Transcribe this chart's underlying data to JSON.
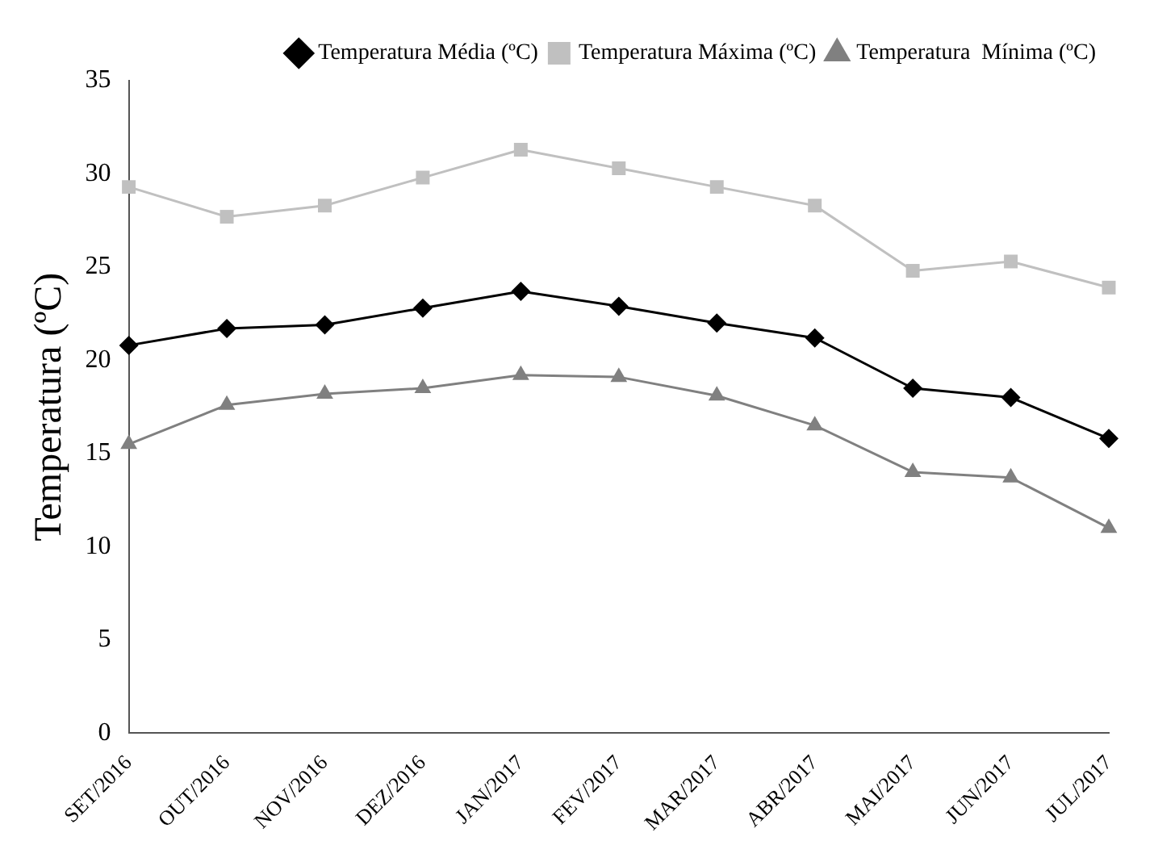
{
  "chart_data": {
    "type": "line",
    "ylabel": "Temperatura (ºC)",
    "categories": [
      "SET/2016",
      "OUT/2016",
      "NOV/2016",
      "DEZ/2016",
      "JAN/2017",
      "FEV/2017",
      "MAR/2017",
      "ABR/2017",
      "MAI/2017",
      "JUN/2017",
      "JUL/2017"
    ],
    "series": [
      {
        "name": "Temperatura Média (ºC)",
        "color": "#000000",
        "marker": "diamond",
        "values": [
          20.8,
          21.7,
          21.9,
          22.8,
          23.7,
          22.9,
          22.0,
          21.2,
          18.5,
          18.0,
          15.8
        ]
      },
      {
        "name": "Temperatura Máxima (ºC)",
        "color": "#c0c0c0",
        "marker": "square",
        "values": [
          29.3,
          27.7,
          28.3,
          29.8,
          31.3,
          30.3,
          29.3,
          28.3,
          24.8,
          25.3,
          23.9
        ]
      },
      {
        "name": "Temperatura  Mínima (ºC)",
        "color": "#808080",
        "marker": "triangle",
        "values": [
          15.5,
          17.6,
          18.2,
          18.5,
          19.2,
          19.1,
          18.1,
          16.5,
          14.0,
          13.7,
          11.0
        ]
      }
    ],
    "ylim": [
      0,
      35
    ],
    "yticks": [
      0,
      5,
      10,
      15,
      20,
      25,
      30,
      35
    ],
    "grid": false,
    "legend": "top right"
  }
}
